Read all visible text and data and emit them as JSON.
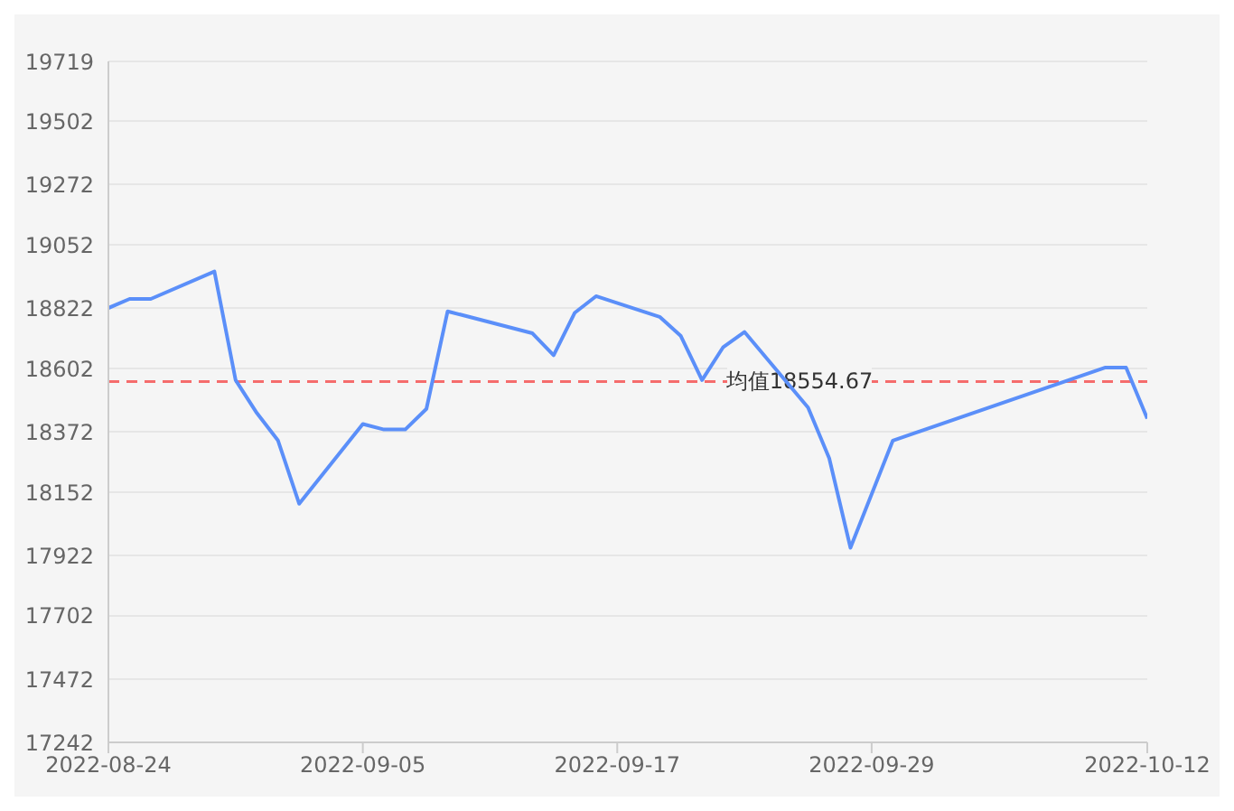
{
  "chart_data": {
    "type": "line",
    "x": [
      "2022-08-24",
      "2022-08-25",
      "2022-08-26",
      "2022-08-29",
      "2022-08-30",
      "2022-08-31",
      "2022-09-01",
      "2022-09-02",
      "2022-09-05",
      "2022-09-06",
      "2022-09-07",
      "2022-09-08",
      "2022-09-09",
      "2022-09-13",
      "2022-09-14",
      "2022-09-15",
      "2022-09-16",
      "2022-09-19",
      "2022-09-20",
      "2022-09-21",
      "2022-09-22",
      "2022-09-23",
      "2022-09-26",
      "2022-09-27",
      "2022-09-28",
      "2022-09-30",
      "2022-10-10",
      "2022-10-11",
      "2022-10-12"
    ],
    "series": [
      {
        "color": "#5b8ff9",
        "values": [
          18822,
          18855,
          18855,
          18955,
          18560,
          18440,
          18340,
          18110,
          18400,
          18380,
          18380,
          18455,
          18810,
          18730,
          18650,
          18805,
          18865,
          18790,
          18720,
          18560,
          18680,
          18735,
          18460,
          18275,
          17950,
          18340,
          18605,
          18605,
          18420
        ]
      }
    ],
    "xlim": [
      "2022-08-24",
      "2022-10-12"
    ],
    "xticks": [
      "2022-08-24",
      "2022-09-05",
      "2022-09-17",
      "2022-09-29",
      "2022-10-12"
    ],
    "ylim": [
      17242,
      19719
    ],
    "yticks": [
      17242,
      17472,
      17702,
      17922,
      18152,
      18372,
      18602,
      18822,
      19052,
      19272,
      19502,
      19719
    ],
    "ref_lines": [
      {
        "axis": "y",
        "value": 18554.67,
        "label": "均值18554.67",
        "color": "#f56c6c",
        "line_style": "dashed"
      }
    ],
    "grid": "y",
    "marker": "none",
    "line_style": "solid",
    "legend": false
  }
}
